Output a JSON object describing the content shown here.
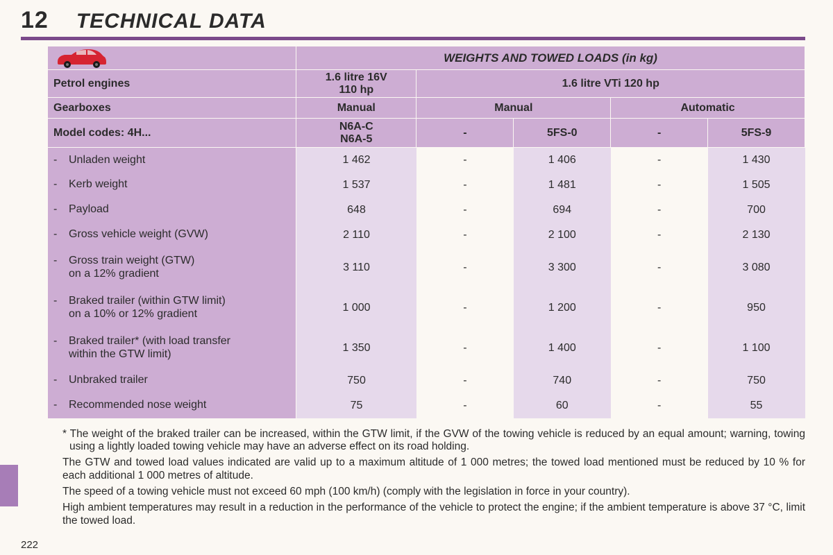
{
  "chapter": {
    "number": "12",
    "title": "TECHNICAL DATA"
  },
  "pageNumber": "222",
  "colors": {
    "purpleRule": "#7b4a8b",
    "headerBg": "#cdadd3",
    "bodyBg": "#e6d9eb",
    "pageBg": "#fbf8f3",
    "sideTab": "#a77db7",
    "carBody": "#d62431",
    "carDark": "#1a1a1a"
  },
  "table": {
    "title": "WEIGHTS AND TOWED LOADS (in kg)",
    "head1": {
      "label": "Petrol engines",
      "colA": "1.6 litre 16V\n110 hp",
      "colBC": "1.6 litre VTi 120 hp"
    },
    "head2": {
      "label": "Gearboxes",
      "colA": "Manual",
      "colB": "Manual",
      "colC": "Automatic"
    },
    "head3": {
      "label": "Model codes: 4H...",
      "a": "N6A-C\nN6A-5",
      "b1": "-",
      "b2": "5FS-0",
      "c1": "-",
      "c2": "5FS-9"
    },
    "rows": [
      {
        "label": "Unladen weight",
        "a": "1 462",
        "b1": "-",
        "b2": "1 406",
        "c1": "-",
        "c2": "1 430"
      },
      {
        "label": "Kerb weight",
        "a": "1 537",
        "b1": "-",
        "b2": "1 481",
        "c1": "-",
        "c2": "1 505"
      },
      {
        "label": "Payload",
        "a": "648",
        "b1": "-",
        "b2": "694",
        "c1": "-",
        "c2": "700"
      },
      {
        "label": "Gross vehicle weight (GVW)",
        "a": "2 110",
        "b1": "-",
        "b2": "2 100",
        "c1": "-",
        "c2": "2 130"
      },
      {
        "label": "Gross train weight (GTW)\non a 12% gradient",
        "tall": true,
        "a": "3 110",
        "b1": "-",
        "b2": "3 300",
        "c1": "-",
        "c2": "3 080"
      },
      {
        "label": "Braked trailer (within GTW limit)\non a 10% or 12% gradient",
        "tall": true,
        "a": "1 000",
        "b1": "-",
        "b2": "1 200",
        "c1": "-",
        "c2": "950"
      },
      {
        "label": "Braked trailer* (with load transfer\nwithin the GTW limit)",
        "tall": true,
        "a": "1 350",
        "b1": "-",
        "b2": "1 400",
        "c1": "-",
        "c2": "1 100"
      },
      {
        "label": "Unbraked trailer",
        "a": "750",
        "b1": "-",
        "b2": "740",
        "c1": "-",
        "c2": "750"
      },
      {
        "label": "Recommended nose weight",
        "a": "75",
        "b1": "-",
        "b2": "60",
        "c1": "-",
        "c2": "55"
      }
    ]
  },
  "footnotes": [
    "* The weight of the braked trailer can be increased, within the GTW limit, if the GVW of the towing vehicle is reduced by an equal amount; warning, towing using a lightly loaded towing vehicle may have an adverse effect on its road holding.",
    "The GTW and towed load values indicated are valid up to a maximum altitude of 1 000 metres; the towed load mentioned must be reduced by 10 % for each additional 1 000 metres of altitude.",
    "The speed of a towing vehicle must not exceed 60 mph (100 km/h) (comply with the legislation in force in your country).",
    "High ambient temperatures may result in a reduction in the performance of the vehicle to protect the engine; if the ambient temperature is above 37 °C, limit the towed load."
  ]
}
